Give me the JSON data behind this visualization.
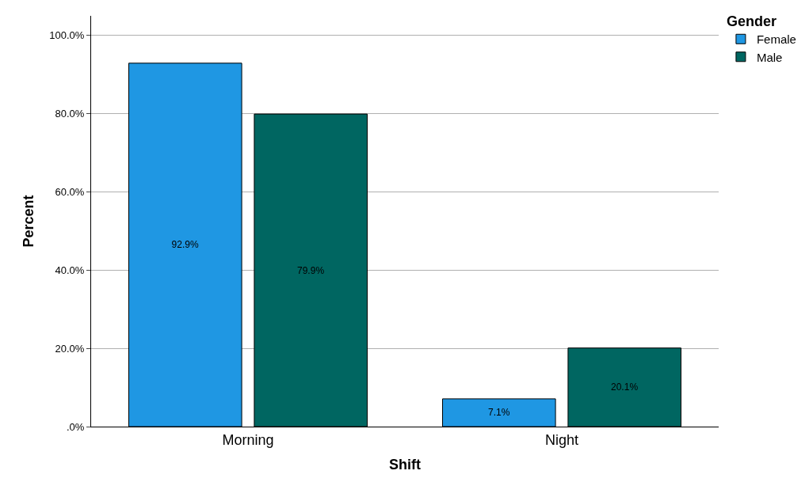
{
  "chart_data": {
    "type": "bar",
    "xlabel": "Shift",
    "ylabel": "Percent",
    "legend_title": "Gender",
    "categories": [
      "Morning",
      "Night"
    ],
    "series": [
      {
        "name": "Female",
        "color": "#1f97e3",
        "values": [
          92.9,
          7.1
        ],
        "value_labels": [
          "92.9%",
          "7.1%"
        ]
      },
      {
        "name": "Male",
        "color": "#006661",
        "values": [
          79.9,
          20.1
        ],
        "value_labels": [
          "79.9%",
          "20.1%"
        ]
      }
    ],
    "ylim": [
      0,
      105
    ],
    "yticks": [
      {
        "value": 0,
        "label": ".0%"
      },
      {
        "value": 20,
        "label": "20.0%"
      },
      {
        "value": 40,
        "label": "40.0%"
      },
      {
        "value": 60,
        "label": "60.0%"
      },
      {
        "value": 80,
        "label": "80.0%"
      },
      {
        "value": 100,
        "label": "100.0%"
      }
    ],
    "grid": "y",
    "legend": "top right"
  }
}
